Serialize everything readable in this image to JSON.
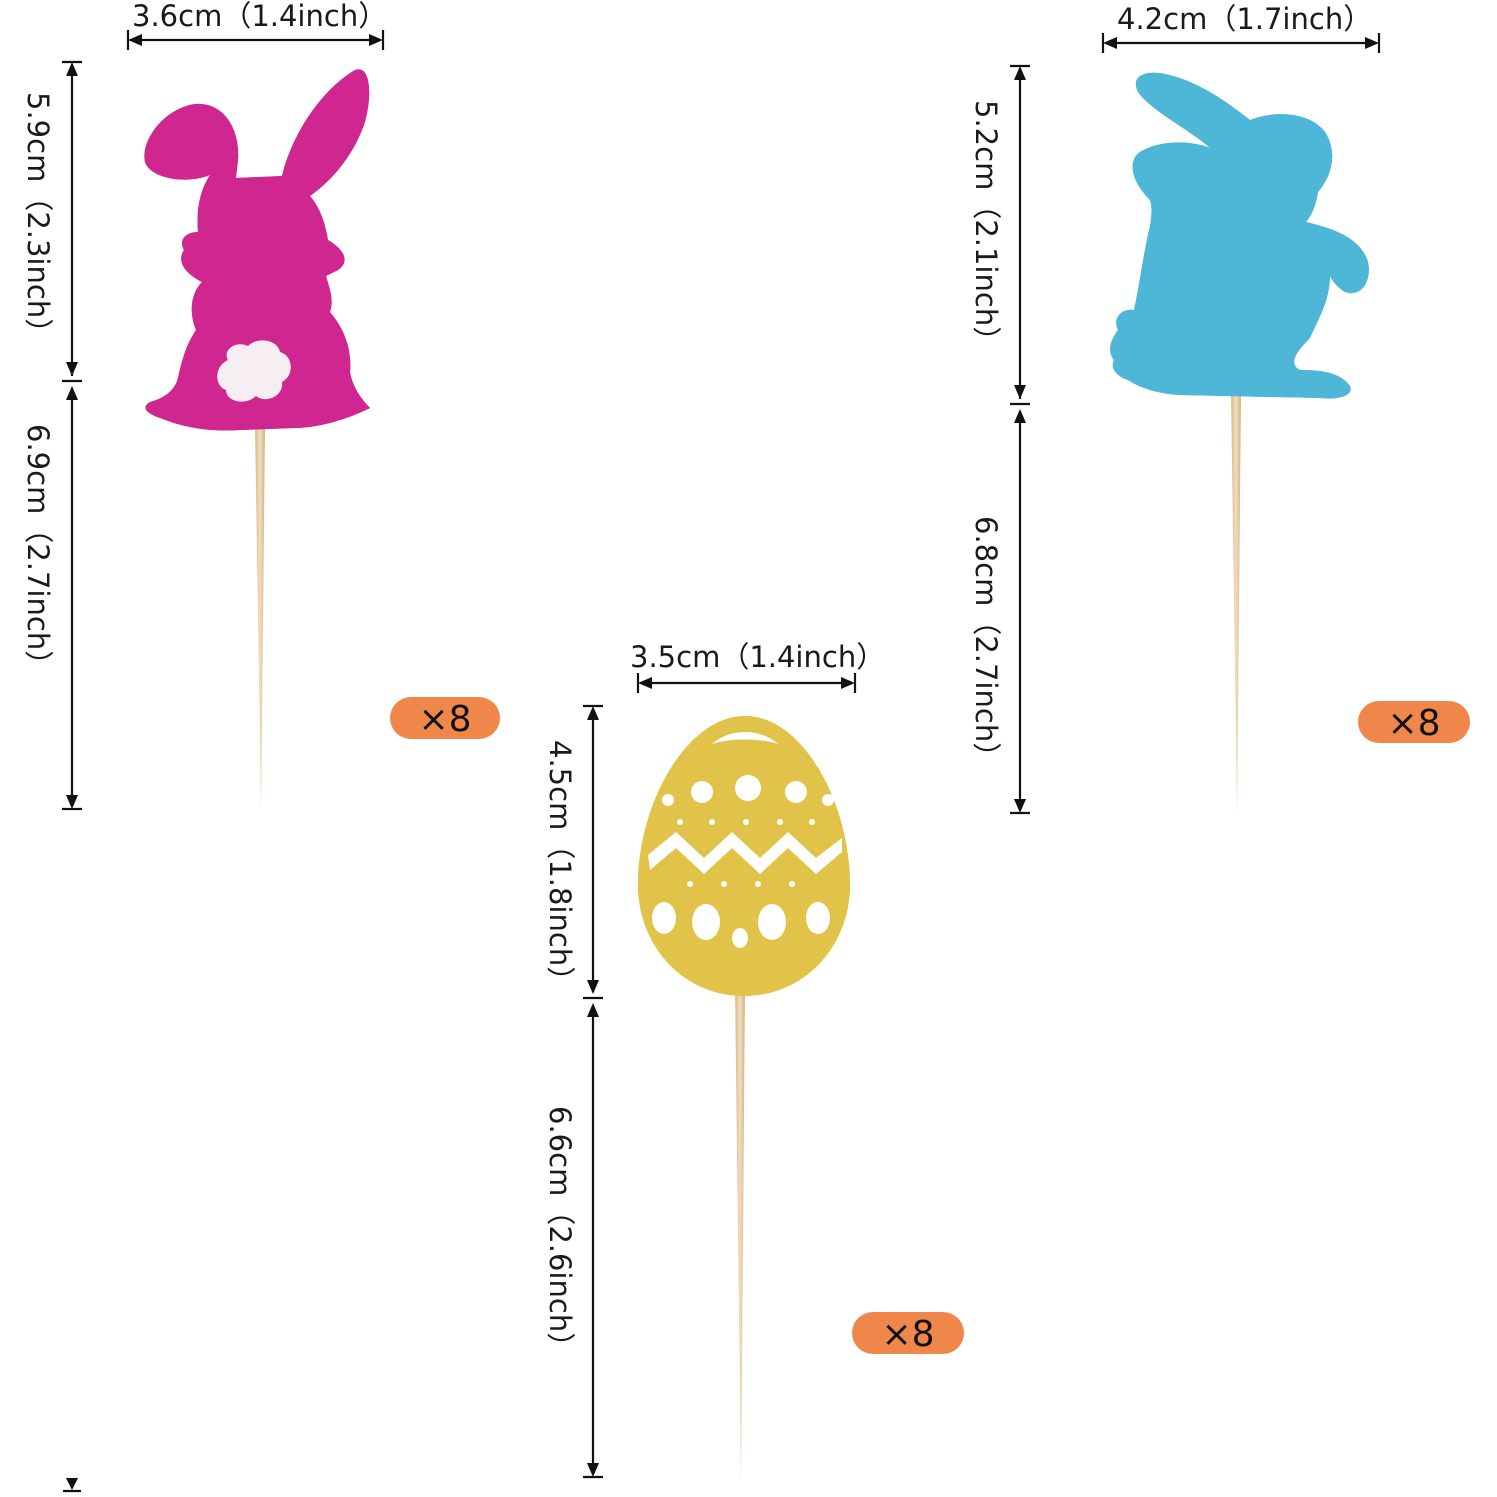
{
  "colors": {
    "pink_bunny": "#D0268F",
    "blue_bunny": "#4EB7D8",
    "gold_egg": "#E2C34A",
    "stick": "#E8CFA8",
    "badge": "#F0874A",
    "tail": "#F6EEF2"
  },
  "pink_bunny": {
    "width_label": "3.6cm（1.4inch）",
    "height_label": "5.9cm（2.3inch）",
    "stick_label": "6.9cm（2.7inch）",
    "quantity": "×8"
  },
  "blue_bunny": {
    "width_label": "4.2cm（1.7inch）",
    "height_label": "5.2cm（2.1inch）",
    "stick_label": "6.8cm（2.7inch）",
    "quantity": "×8"
  },
  "gold_egg": {
    "width_label": "3.5cm（1.4inch）",
    "height_label": "4.5cm（1.8inch）",
    "stick_label": "6.6cm（2.6inch）",
    "quantity": "×8"
  }
}
